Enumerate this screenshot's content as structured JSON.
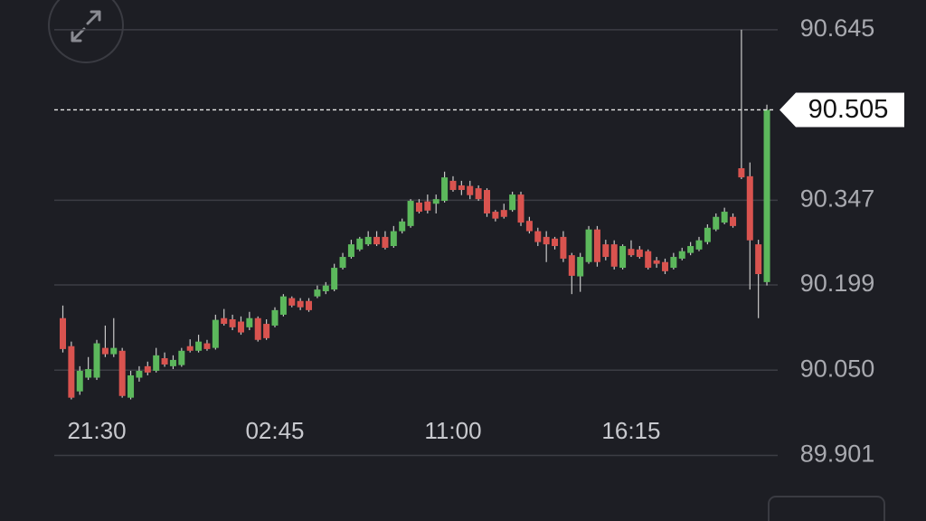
{
  "chart_data": {
    "type": "candlestick",
    "categories": [
      null,
      null,
      null,
      null,
      null,
      null,
      null,
      null,
      null,
      null,
      null,
      null,
      null,
      null,
      null,
      null,
      null,
      null,
      null,
      null,
      null,
      null,
      null,
      null,
      null,
      null,
      null,
      null,
      null,
      null,
      null,
      null,
      null,
      null,
      null,
      null,
      null,
      null,
      null,
      null,
      null,
      null,
      null,
      null,
      null,
      null,
      null,
      null,
      null,
      null,
      null,
      null,
      null,
      null,
      null,
      null,
      null,
      null,
      null,
      null,
      null,
      null,
      null,
      null,
      null,
      null,
      null,
      null,
      null,
      null,
      null,
      null,
      null,
      null,
      null,
      null,
      null,
      null,
      null,
      null,
      null,
      null,
      null,
      null
    ],
    "open": [
      90.141,
      90.092,
      90.013,
      90.037,
      90.037,
      90.089,
      90.078,
      90.084,
      90.002,
      90.037,
      90.057,
      90.049,
      90.071,
      90.057,
      90.059,
      90.092,
      90.084,
      90.097,
      90.089,
      90.141,
      90.139,
      90.135,
      90.125,
      90.141,
      90.131,
      90.128,
      90.147,
      90.176,
      90.171,
      90.171,
      90.179,
      90.188,
      90.191,
      90.229,
      90.248,
      90.261,
      90.27,
      90.283,
      90.283,
      90.267,
      90.293,
      90.302,
      90.343,
      90.345,
      90.341,
      90.346,
      90.381,
      90.373,
      90.372,
      90.368,
      90.365,
      90.327,
      90.33,
      90.33,
      90.357,
      90.311,
      90.293,
      90.283,
      90.28,
      90.283,
      90.251,
      90.214,
      90.239,
      90.296,
      90.27,
      90.27,
      90.229,
      90.262,
      90.261,
      90.258,
      90.242,
      90.239,
      90.229,
      90.245,
      90.255,
      90.261,
      90.274,
      90.296,
      90.308,
      90.318,
      90.403,
      90.389,
      90.27,
      90.204
    ],
    "high": [
      90.163,
      90.1,
      90.057,
      90.073,
      90.103,
      90.128,
      90.141,
      90.089,
      90.049,
      90.057,
      90.065,
      90.089,
      90.081,
      90.076,
      90.089,
      90.104,
      90.112,
      90.103,
      90.147,
      90.157,
      90.147,
      90.144,
      90.152,
      90.144,
      90.139,
      90.16,
      90.183,
      90.179,
      90.176,
      90.176,
      90.198,
      90.204,
      90.236,
      90.255,
      90.278,
      90.283,
      90.293,
      90.293,
      90.293,
      90.302,
      90.315,
      90.349,
      90.349,
      90.357,
      90.357,
      90.397,
      90.389,
      90.381,
      90.381,
      90.373,
      90.368,
      90.33,
      90.341,
      90.362,
      90.362,
      90.318,
      90.299,
      90.293,
      90.283,
      90.293,
      90.255,
      90.255,
      90.302,
      90.302,
      90.278,
      90.277,
      90.27,
      90.277,
      90.267,
      90.261,
      90.248,
      90.245,
      90.255,
      90.264,
      90.274,
      90.283,
      90.305,
      90.324,
      90.334,
      90.324,
      90.645,
      90.413,
      90.278,
      90.514
    ],
    "low": [
      90.081,
      89.999,
      90.007,
      90.033,
      90.033,
      90.073,
      90.073,
      90.002,
      89.999,
      90.03,
      90.041,
      90.046,
      90.056,
      90.052,
      90.056,
      90.081,
      90.081,
      90.084,
      90.086,
      90.128,
      90.12,
      90.112,
      90.12,
      90.1,
      90.103,
      90.125,
      90.144,
      90.16,
      90.155,
      90.152,
      90.176,
      90.183,
      90.188,
      90.226,
      90.245,
      90.258,
      90.267,
      90.267,
      90.261,
      90.264,
      90.289,
      90.299,
      90.324,
      90.324,
      90.324,
      90.343,
      90.362,
      90.356,
      90.349,
      90.346,
      90.318,
      90.31,
      90.315,
      90.327,
      90.302,
      90.289,
      90.267,
      90.239,
      90.261,
      90.239,
      90.183,
      90.187,
      90.236,
      90.231,
      90.242,
      90.226,
      90.226,
      90.248,
      90.245,
      90.226,
      90.229,
      90.218,
      90.226,
      90.242,
      90.251,
      90.258,
      90.27,
      90.293,
      90.305,
      90.299,
      90.384,
      90.191,
      90.141,
      90.198
    ],
    "close": [
      90.087,
      90.002,
      90.049,
      90.052,
      90.097,
      90.078,
      90.089,
      90.005,
      90.041,
      90.049,
      90.046,
      90.076,
      90.06,
      90.068,
      90.084,
      90.084,
      90.1,
      90.087,
      90.138,
      90.131,
      90.125,
      90.116,
      90.141,
      90.103,
      90.106,
      90.155,
      90.179,
      90.163,
      90.16,
      90.155,
      90.191,
      90.198,
      90.229,
      90.248,
      90.27,
      90.28,
      90.283,
      90.27,
      90.264,
      90.293,
      90.31,
      90.346,
      90.327,
      90.329,
      90.349,
      90.387,
      90.365,
      90.365,
      90.356,
      90.349,
      90.324,
      90.315,
      90.318,
      90.357,
      90.308,
      90.293,
      90.274,
      90.27,
      90.267,
      90.245,
      90.215,
      90.248,
      90.296,
      90.239,
      90.248,
      90.231,
      90.267,
      90.251,
      90.248,
      90.229,
      90.236,
      90.223,
      90.248,
      90.258,
      90.267,
      90.277,
      90.299,
      90.318,
      90.327,
      90.302,
      90.387,
      90.277,
      90.218,
      90.505
    ],
    "up_color": "#5cb85c",
    "down_color": "#d9534f",
    "ylim": [
      89.875,
      90.697
    ],
    "yticks": [
      90.645,
      90.347,
      90.199,
      {
        "value": 90.05,
        "label": "90.050"
      },
      89.901
    ],
    "xticks": [
      {
        "value": 4,
        "label": "21:30"
      },
      {
        "value": 25,
        "label": "02:45"
      },
      {
        "value": 46,
        "label": "11:00"
      },
      {
        "value": 67,
        "label": "16:15"
      }
    ],
    "current_price": 90.505,
    "grid": true
  }
}
